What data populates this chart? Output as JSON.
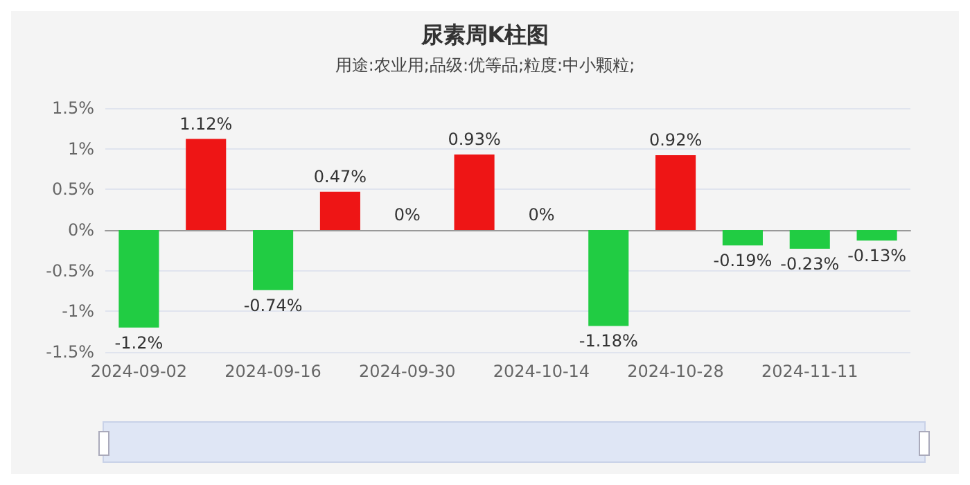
{
  "chart_data": {
    "type": "bar",
    "title": "尿素周K柱图",
    "subtitle": "用途:农业用;品级:优等品;粒度:中小颗粒;",
    "categories": [
      "2024-09-02",
      null,
      "2024-09-16",
      null,
      "2024-09-30",
      null,
      "2024-10-14",
      null,
      "2024-10-28",
      null,
      "2024-11-11",
      null
    ],
    "values": [
      -1.2,
      1.12,
      -0.74,
      0.47,
      0,
      0.93,
      0,
      -1.18,
      0.92,
      -0.19,
      -0.23,
      -0.13
    ],
    "colors": [
      "#21cc43",
      "#ee1515",
      "#21cc43",
      "#ee1515",
      "#ee1515",
      "#ee1515",
      "#ee1515",
      "#21cc43",
      "#ee1515",
      "#21cc43",
      "#21cc43",
      "#21cc43"
    ],
    "value_labels": [
      "-1.2%",
      "1.12%",
      "-0.74%",
      "0.47%",
      "0%",
      "0.93%",
      "0%",
      "-1.18%",
      "0.92%",
      "-0.19%",
      "-0.23%",
      "-0.13%"
    ],
    "ylim": [
      -1.5,
      1.5
    ],
    "yticks": [
      {
        "value": -1.5,
        "label": "-1.5%"
      },
      {
        "value": -1,
        "label": "-1%"
      },
      {
        "value": -0.5,
        "label": "-0.5%"
      },
      {
        "value": 0,
        "label": "0%"
      },
      {
        "value": 0.5,
        "label": "0.5%"
      },
      {
        "value": 1,
        "label": "1%"
      },
      {
        "value": 1.5,
        "label": "1.5%"
      }
    ],
    "grid": "y"
  }
}
